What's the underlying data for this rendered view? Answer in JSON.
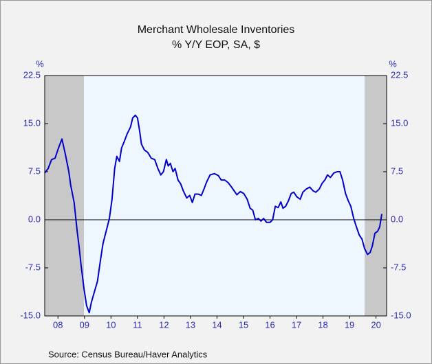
{
  "chart_data": {
    "type": "line",
    "title": "Merchant Wholesale Inventories",
    "subtitle": "% Y/Y   EOP, SA, $",
    "y_label": "%",
    "source": "Source:  Census Bureau/Haver Analytics",
    "xlim": [
      2008,
      2020.9
    ],
    "ylim": [
      -15,
      22.5
    ],
    "yticks": [
      {
        "value": -15,
        "label": "-15.0"
      },
      -7.5,
      {
        "value": 0,
        "label": "0.0"
      },
      7.5,
      {
        "value": 15,
        "label": "15.0"
      },
      22.5
    ],
    "xticks": [
      {
        "value": 2008.5,
        "label": "08"
      },
      {
        "value": 2009.5,
        "label": "09"
      },
      {
        "value": 2010.5,
        "label": "10"
      },
      {
        "value": 2011.5,
        "label": "11"
      },
      {
        "value": 2012.5,
        "label": "12"
      },
      {
        "value": 2013.5,
        "label": "13"
      },
      {
        "value": 2014.5,
        "label": "14"
      },
      {
        "value": 2015.5,
        "label": "15"
      },
      {
        "value": 2016.5,
        "label": "16"
      },
      {
        "value": 2017.5,
        "label": "17"
      },
      {
        "value": 2018.5,
        "label": "18"
      },
      {
        "value": 2019.5,
        "label": "19"
      },
      {
        "value": 2020.5,
        "label": "20"
      }
    ],
    "hline": 0,
    "shaded_ranges": [
      [
        2008,
        2009.48
      ],
      [
        2020.07,
        2020.9
      ]
    ],
    "shade_color": "#c8c8c8",
    "grid": false,
    "x": [
      2008.0,
      2008.13,
      2008.26,
      2008.39,
      2008.52,
      2008.65,
      2008.78,
      2008.91,
      2008.98,
      2009.11,
      2009.22,
      2009.3,
      2009.37,
      2009.48,
      2009.58,
      2009.68,
      2009.76,
      2009.87,
      2009.99,
      2010.1,
      2010.2,
      2010.33,
      2010.44,
      2010.54,
      2010.64,
      2010.72,
      2010.82,
      2010.9,
      2011.01,
      2011.11,
      2011.24,
      2011.32,
      2011.42,
      2011.5,
      2011.58,
      2011.65,
      2011.76,
      2011.89,
      2012.02,
      2012.15,
      2012.27,
      2012.38,
      2012.48,
      2012.59,
      2012.66,
      2012.74,
      2012.84,
      2012.92,
      2013.03,
      2013.13,
      2013.23,
      2013.36,
      2013.47,
      2013.57,
      2013.67,
      2013.8,
      2013.91,
      2014.01,
      2014.11,
      2014.24,
      2014.4,
      2014.55,
      2014.66,
      2014.79,
      2014.92,
      2015.05,
      2015.15,
      2015.25,
      2015.38,
      2015.51,
      2015.64,
      2015.75,
      2015.85,
      2015.95,
      2016.06,
      2016.16,
      2016.26,
      2016.37,
      2016.5,
      2016.6,
      2016.7,
      2016.81,
      2016.91,
      2016.99,
      2017.09,
      2017.2,
      2017.3,
      2017.4,
      2017.51,
      2017.64,
      2017.74,
      2017.87,
      2018.0,
      2018.13,
      2018.23,
      2018.36,
      2018.47,
      2018.57,
      2018.67,
      2018.78,
      2018.91,
      2019.04,
      2019.14,
      2019.24,
      2019.35,
      2019.45,
      2019.55,
      2019.66,
      2019.76,
      2019.87,
      2019.97,
      2020.07,
      2020.18,
      2020.28,
      2020.36,
      2020.46,
      2020.56,
      2020.64,
      2020.72
    ],
    "series": [
      {
        "name": "Merchant Wholesale Inventories",
        "color": "#0000c8",
        "values": [
          7.3,
          8.0,
          9.4,
          9.6,
          11.2,
          12.6,
          10.2,
          7.5,
          5.4,
          2.7,
          -1.6,
          -4.3,
          -7.0,
          -10.7,
          -13.4,
          -14.5,
          -12.9,
          -11.3,
          -9.6,
          -6.4,
          -3.7,
          -1.6,
          0.2,
          3.2,
          8.0,
          9.9,
          9.1,
          11.2,
          12.3,
          13.4,
          14.5,
          15.9,
          16.3,
          15.9,
          13.9,
          11.8,
          10.9,
          10.5,
          9.6,
          9.4,
          8.0,
          7.0,
          7.5,
          9.4,
          8.4,
          8.8,
          7.5,
          8.0,
          6.2,
          5.6,
          4.5,
          3.4,
          3.8,
          2.7,
          4.0,
          4.0,
          3.8,
          4.8,
          5.9,
          7.0,
          7.2,
          6.9,
          6.2,
          6.2,
          5.8,
          5.1,
          4.5,
          3.9,
          4.4,
          4.1,
          3.2,
          1.8,
          1.5,
          0.0,
          0.2,
          -0.2,
          0.2,
          -0.4,
          -0.4,
          0.0,
          2.1,
          1.9,
          2.8,
          1.8,
          2.1,
          3.0,
          4.1,
          4.3,
          3.6,
          3.2,
          4.3,
          4.8,
          5.1,
          4.5,
          4.3,
          4.8,
          5.7,
          6.2,
          7.0,
          6.6,
          7.3,
          7.5,
          7.5,
          6.2,
          4.1,
          3.0,
          2.1,
          0.2,
          -1.1,
          -2.4,
          -3.0,
          -4.5,
          -5.4,
          -5.1,
          -4.1,
          -2.1,
          -1.8,
          -1.1,
          0.9
        ]
      }
    ]
  }
}
